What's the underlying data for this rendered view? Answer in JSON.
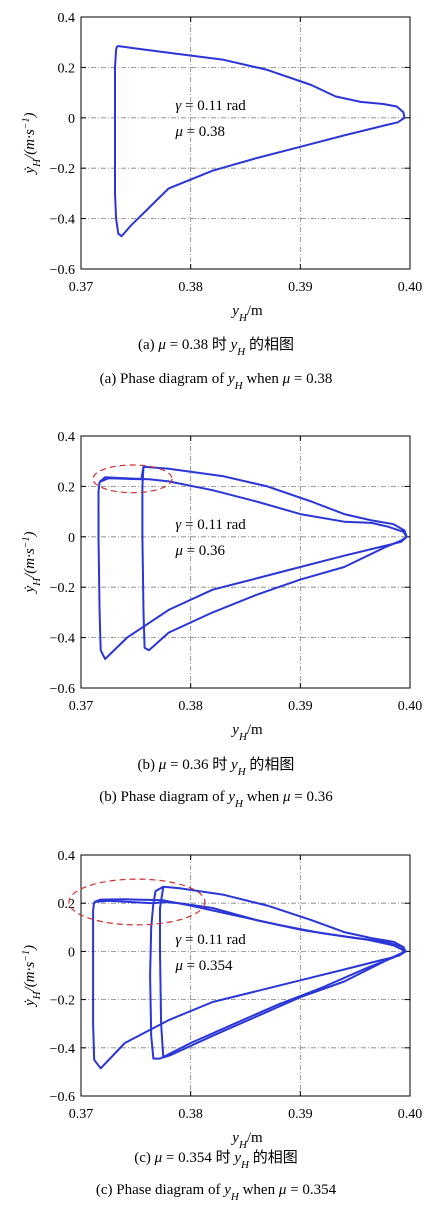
{
  "chart_data": [
    {
      "type": "line",
      "id": "a",
      "xlabel": "yH/m",
      "ylabel": "ẏH/(m·s⁻¹)",
      "xlim": [
        0.37,
        0.4
      ],
      "ylim": [
        -0.6,
        0.4
      ],
      "xticks": [
        "0.37",
        "0.38",
        "0.39",
        "0.40"
      ],
      "yticks": [
        "0.4",
        "0.2",
        "0",
        "−0.2",
        "−0.4",
        "−0.6"
      ],
      "grid": true,
      "annotation": [
        "γ = 0.11 rad",
        "μ = 0.38"
      ],
      "caption_cn": "(a) μ = 0.38 时 yH 的相图",
      "caption_en": "(a) Phase diagram of yH when μ = 0.38",
      "series": [
        {
          "color": "#2a36d6",
          "loops": [
            [
              [
                0.3733,
                0.285
              ],
              [
                0.3745,
                0.278
              ],
              [
                0.378,
                0.258
              ],
              [
                0.383,
                0.23
              ],
              [
                0.387,
                0.19
              ],
              [
                0.391,
                0.13
              ],
              [
                0.3932,
                0.085
              ],
              [
                0.3955,
                0.063
              ],
              [
                0.3975,
                0.055
              ],
              [
                0.3988,
                0.045
              ],
              [
                0.3994,
                0.022
              ],
              [
                0.3995,
                0.0
              ],
              [
                0.3989,
                -0.018
              ],
              [
                0.3975,
                -0.032
              ],
              [
                0.394,
                -0.07
              ],
              [
                0.39,
                -0.115
              ],
              [
                0.386,
                -0.16
              ],
              [
                0.382,
                -0.21
              ],
              [
                0.378,
                -0.28
              ],
              [
                0.3745,
                -0.43
              ],
              [
                0.3737,
                -0.47
              ],
              [
                0.3734,
                -0.46
              ],
              [
                0.3732,
                -0.4
              ],
              [
                0.3731,
                -0.3
              ],
              [
                0.3731,
                0.0
              ],
              [
                0.3731,
                0.2
              ],
              [
                0.3732,
                0.27
              ],
              [
                0.3733,
                0.285
              ]
            ]
          ]
        }
      ],
      "highlights": []
    },
    {
      "type": "line",
      "id": "b",
      "xlabel": "yH/m",
      "ylabel": "ẏH/(m·s⁻¹)",
      "xlim": [
        0.37,
        0.4
      ],
      "ylim": [
        -0.6,
        0.4
      ],
      "xticks": [
        "0.37",
        "0.38",
        "0.39",
        "0.40"
      ],
      "yticks": [
        "0.4",
        "0.2",
        "0",
        "−0.2",
        "−0.4",
        "−0.6"
      ],
      "grid": true,
      "annotation": [
        "γ = 0.11 rad",
        "μ = 0.36"
      ],
      "caption_cn": "(b) μ = 0.36 时 yH 的相图",
      "caption_en": "(b) Phase diagram of yH when μ = 0.36",
      "series": [
        {
          "color": "#2a36d6",
          "loops": [
            [
              [
                0.3717,
                0.218
              ],
              [
                0.3725,
                0.232
              ],
              [
                0.374,
                0.23
              ],
              [
                0.3755,
                0.228
              ],
              [
                0.3757,
                0.278
              ],
              [
                0.378,
                0.27
              ],
              [
                0.383,
                0.24
              ],
              [
                0.387,
                0.2
              ],
              [
                0.391,
                0.14
              ],
              [
                0.394,
                0.09
              ],
              [
                0.3965,
                0.065
              ],
              [
                0.3985,
                0.05
              ],
              [
                0.3995,
                0.025
              ],
              [
                0.3997,
                0.0
              ],
              [
                0.3992,
                -0.02
              ],
              [
                0.3978,
                -0.035
              ],
              [
                0.394,
                -0.075
              ],
              [
                0.39,
                -0.12
              ],
              [
                0.386,
                -0.165
              ],
              [
                0.382,
                -0.21
              ],
              [
                0.378,
                -0.29
              ],
              [
                0.3742,
                -0.4
              ],
              [
                0.3722,
                -0.485
              ],
              [
                0.3718,
                -0.45
              ],
              [
                0.3717,
                -0.3
              ],
              [
                0.3716,
                0.0
              ],
              [
                0.3716,
                0.18
              ],
              [
                0.3717,
                0.218
              ]
            ],
            [
              [
                0.3757,
                0.278
              ],
              [
                0.3756,
                0.2
              ],
              [
                0.3756,
                0.0
              ],
              [
                0.3757,
                -0.3
              ],
              [
                0.3758,
                -0.44
              ],
              [
                0.3762,
                -0.45
              ],
              [
                0.378,
                -0.38
              ],
              [
                0.382,
                -0.3
              ],
              [
                0.386,
                -0.23
              ],
              [
                0.39,
                -0.17
              ],
              [
                0.394,
                -0.12
              ],
              [
                0.3978,
                -0.04
              ],
              [
                0.3992,
                -0.015
              ],
              [
                0.3997,
                0.0
              ],
              [
                0.3994,
                0.02
              ],
              [
                0.398,
                0.04
              ],
              [
                0.3965,
                0.055
              ],
              [
                0.394,
                0.06
              ],
              [
                0.39,
                0.09
              ],
              [
                0.386,
                0.14
              ],
              [
                0.382,
                0.185
              ],
              [
                0.378,
                0.22
              ],
              [
                0.3762,
                0.228
              ],
              [
                0.374,
                0.232
              ],
              [
                0.3722,
                0.236
              ],
              [
                0.3717,
                0.218
              ]
            ]
          ]
        }
      ],
      "highlights": [
        {
          "cx": 0.3747,
          "cy": 0.23,
          "rx": 0.0036,
          "ry": 0.055
        }
      ]
    },
    {
      "type": "line",
      "id": "c",
      "xlabel": "yH/m",
      "ylabel": "ẏH/(m·s⁻¹)",
      "xlim": [
        0.37,
        0.4
      ],
      "ylim": [
        -0.6,
        0.4
      ],
      "xticks": [
        "0.37",
        "0.38",
        "0.39",
        "0.40"
      ],
      "yticks": [
        "0.4",
        "0.2",
        "0",
        "−0.2",
        "−0.4",
        "−0.6"
      ],
      "grid": true,
      "annotation": [
        "γ = 0.11 rad",
        "μ = 0.354"
      ],
      "caption_cn": "(c) μ = 0.354 时 yH 的相图",
      "caption_en": "(c) Phase diagram of yH when μ = 0.354",
      "series": [
        {
          "color": "#2a36d6",
          "loops": [
            [
              [
                0.3712,
                0.205
              ],
              [
                0.3725,
                0.21
              ],
              [
                0.3745,
                0.205
              ],
              [
                0.3766,
                0.2
              ],
              [
                0.3768,
                0.25
              ],
              [
                0.3775,
                0.268
              ],
              [
                0.379,
                0.262
              ],
              [
                0.383,
                0.235
              ],
              [
                0.387,
                0.19
              ],
              [
                0.391,
                0.13
              ],
              [
                0.394,
                0.08
              ],
              [
                0.3965,
                0.055
              ],
              [
                0.3985,
                0.04
              ],
              [
                0.3994,
                0.018
              ],
              [
                0.3996,
                0.0
              ],
              [
                0.399,
                -0.018
              ],
              [
                0.3975,
                -0.035
              ],
              [
                0.394,
                -0.075
              ],
              [
                0.39,
                -0.12
              ],
              [
                0.386,
                -0.165
              ],
              [
                0.382,
                -0.21
              ],
              [
                0.378,
                -0.285
              ],
              [
                0.374,
                -0.38
              ],
              [
                0.3718,
                -0.485
              ],
              [
                0.3712,
                -0.45
              ],
              [
                0.3711,
                -0.3
              ],
              [
                0.3711,
                0.0
              ],
              [
                0.3711,
                0.17
              ],
              [
                0.3712,
                0.205
              ]
            ],
            [
              [
                0.3775,
                0.268
              ],
              [
                0.3772,
                0.18
              ],
              [
                0.3772,
                0.0
              ],
              [
                0.3773,
                -0.3
              ],
              [
                0.3775,
                -0.44
              ],
              [
                0.3782,
                -0.43
              ],
              [
                0.382,
                -0.35
              ],
              [
                0.386,
                -0.27
              ],
              [
                0.39,
                -0.19
              ],
              [
                0.394,
                -0.125
              ],
              [
                0.3975,
                -0.045
              ],
              [
                0.399,
                -0.012
              ],
              [
                0.3996,
                0.0
              ],
              [
                0.3992,
                0.02
              ],
              [
                0.3978,
                0.04
              ],
              [
                0.395,
                0.055
              ],
              [
                0.39,
                0.09
              ],
              [
                0.386,
                0.13
              ],
              [
                0.382,
                0.18
              ],
              [
                0.379,
                0.2
              ],
              [
                0.3776,
                0.205
              ],
              [
                0.3766,
                0.2
              ]
            ],
            [
              [
                0.3766,
                0.2
              ],
              [
                0.3764,
                0.1
              ],
              [
                0.3763,
                -0.1
              ],
              [
                0.3764,
                -0.35
              ],
              [
                0.3766,
                -0.445
              ],
              [
                0.3772,
                -0.445
              ],
              [
                0.38,
                -0.38
              ],
              [
                0.384,
                -0.3
              ],
              [
                0.388,
                -0.22
              ],
              [
                0.392,
                -0.15
              ],
              [
                0.396,
                -0.07
              ],
              [
                0.3985,
                -0.025
              ],
              [
                0.3996,
                0.0
              ],
              [
                0.3985,
                0.025
              ],
              [
                0.396,
                0.05
              ],
              [
                0.392,
                0.075
              ],
              [
                0.388,
                0.11
              ],
              [
                0.384,
                0.15
              ],
              [
                0.38,
                0.19
              ],
              [
                0.3775,
                0.212
              ],
              [
                0.374,
                0.216
              ],
              [
                0.3718,
                0.215
              ],
              [
                0.3712,
                0.205
              ]
            ]
          ]
        }
      ],
      "highlights": [
        {
          "cx": 0.3751,
          "cy": 0.205,
          "rx": 0.0062,
          "ry": 0.095
        }
      ]
    }
  ]
}
